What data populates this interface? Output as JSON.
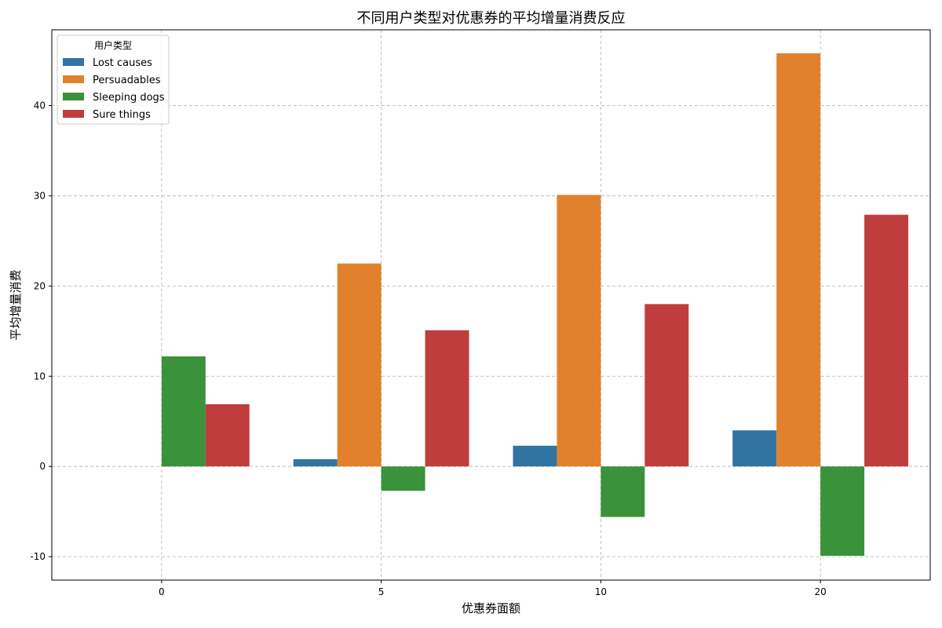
{
  "chart_data": {
    "type": "bar",
    "title": "不同用户类型对优惠券的平均增量消费反应",
    "xlabel": "优惠券面额",
    "ylabel": "平均增量消费",
    "categories": [
      "0",
      "5",
      "10",
      "20"
    ],
    "series": [
      {
        "name": "Lost causes",
        "color": "#3274a1",
        "values": [
          0.0,
          0.8,
          2.3,
          4.0
        ]
      },
      {
        "name": "Persuadables",
        "color": "#e1812c",
        "values": [
          0.0,
          22.5,
          30.1,
          45.8
        ]
      },
      {
        "name": "Sleeping dogs",
        "color": "#3a923a",
        "values": [
          12.2,
          -2.7,
          -5.6,
          -9.9
        ]
      },
      {
        "name": "Sure things",
        "color": "#c03d3e",
        "values": [
          6.9,
          15.1,
          18.0,
          27.9
        ]
      }
    ],
    "ylim": [
      -12.6,
      48.4
    ],
    "yticks": [
      -10,
      0,
      10,
      20,
      30,
      40
    ],
    "grid": true,
    "legend": {
      "title": "用户类型",
      "placement": "top-left"
    }
  }
}
